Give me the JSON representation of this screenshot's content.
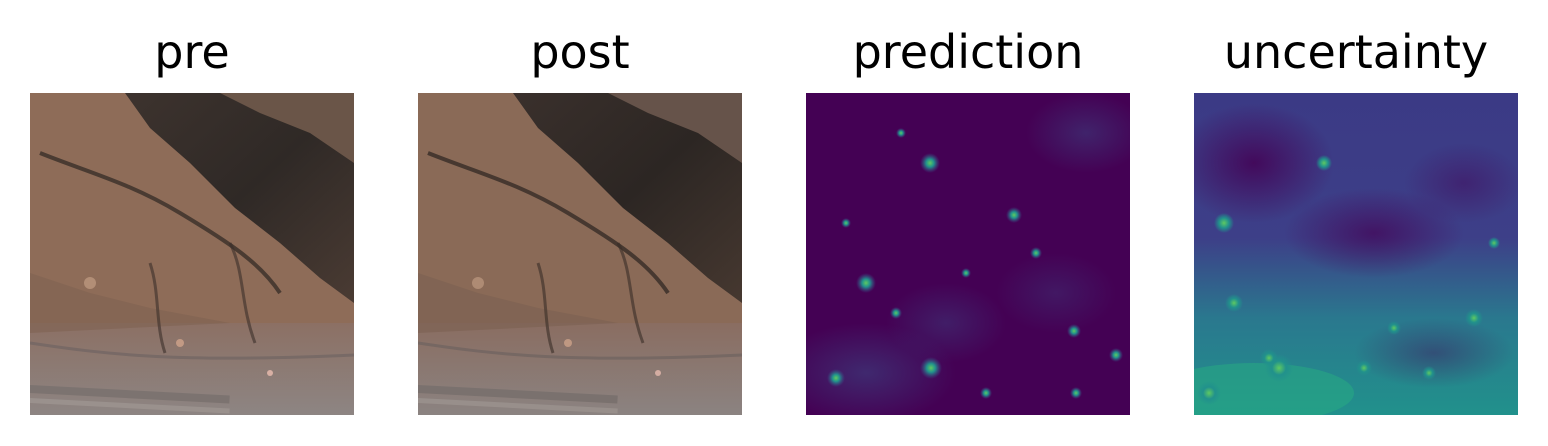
{
  "figure": {
    "panels": [
      {
        "title": "pre",
        "kind": "satellite-rgb"
      },
      {
        "title": "post",
        "kind": "satellite-rgb"
      },
      {
        "title": "prediction",
        "kind": "viridis-map"
      },
      {
        "title": "uncertainty",
        "kind": "viridis-map"
      }
    ],
    "colors": {
      "terrain_light": "#9a7762",
      "terrain_mid": "#7a5a48",
      "ridge_dark": "#3a302c",
      "urban_gray": "#8a7e7c",
      "viridis_low": "#440154",
      "viridis_mid": "#3b528b",
      "viridis_teal": "#21918c",
      "viridis_green": "#5ec962",
      "viridis_high": "#fde725"
    }
  }
}
